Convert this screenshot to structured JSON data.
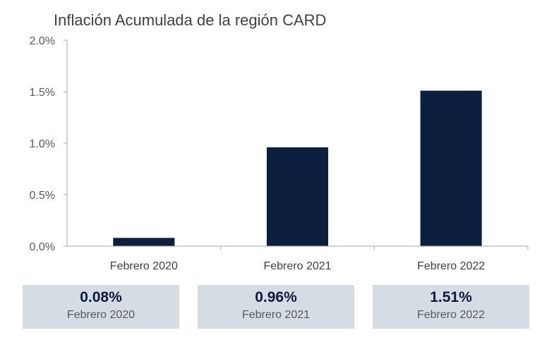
{
  "chart_data": {
    "type": "bar",
    "title": "Inflación Acumulada de la región CARD",
    "categories": [
      "Febrero 2020",
      "Febrero 2021",
      "Febrero 2022"
    ],
    "values": [
      0.08,
      0.96,
      1.51
    ],
    "unit": "%",
    "ylim": [
      0,
      2.0
    ],
    "yticks": [
      "0.0%",
      "0.5%",
      "1.0%",
      "1.5%",
      "2.0%"
    ],
    "ytick_values": [
      0,
      0.5,
      1.0,
      1.5,
      2.0
    ],
    "bar_color": "#0d1f3f",
    "grid": false,
    "legend": "none"
  },
  "kpis": [
    {
      "value": "0.08%",
      "label": "Febrero 2020"
    },
    {
      "value": "0.96%",
      "label": "Febrero 2021"
    },
    {
      "value": "1.51%",
      "label": "Febrero 2022"
    }
  ],
  "colors": {
    "kpi_background": "#d6dce4",
    "kpi_value": "#0d1b3e"
  }
}
